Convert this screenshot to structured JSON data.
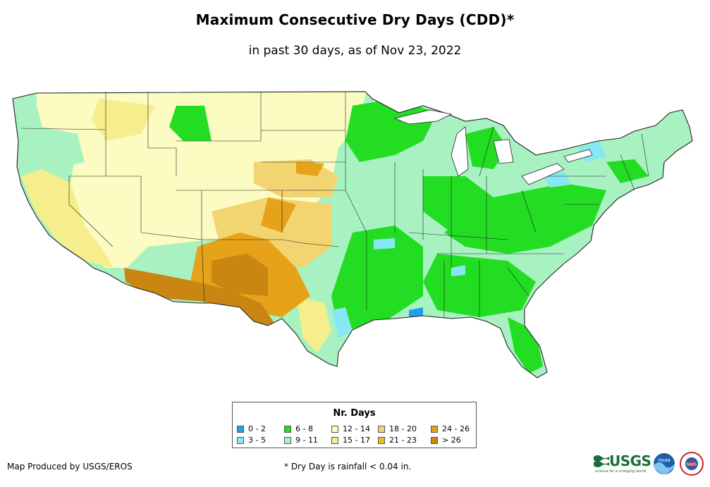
{
  "map": {
    "title": "Maximum Consecutive Dry Days (CDD)*",
    "subtitle": "in past 30 days, as of Nov 23, 2022"
  },
  "legend": {
    "title": "Nr. Days",
    "items": [
      {
        "label": "0 - 2",
        "color": "#1ea0ee"
      },
      {
        "label": "3 - 5",
        "color": "#86e8f2"
      },
      {
        "label": "6 - 8",
        "color": "#22dd22"
      },
      {
        "label": "9 - 11",
        "color": "#a8f2c2"
      },
      {
        "label": "12 - 14",
        "color": "#fbfbc2"
      },
      {
        "label": "15 - 17",
        "color": "#f6ee8c"
      },
      {
        "label": "18 - 20",
        "color": "#f2d470"
      },
      {
        "label": "21 - 23",
        "color": "#f3b82a"
      },
      {
        "label": "24 - 26",
        "color": "#e6a218"
      },
      {
        "label": "> 26",
        "color": "#c98612"
      }
    ]
  },
  "footer": {
    "producer": "Map Produced by USGS/EROS",
    "footnote": "* Dry Day is rainfall < 0.04 in."
  },
  "logos": {
    "usgs": "USGS",
    "usgs_tagline": "science for a changing world",
    "noaa": "noaa",
    "nws": "NWS"
  }
}
